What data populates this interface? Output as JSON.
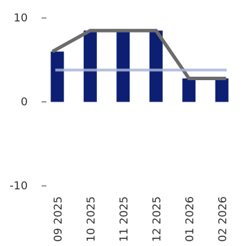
{
  "chart_data": {
    "type": "bar",
    "categories": [
      "09 2025",
      "10 2025",
      "11 2025",
      "12 2025",
      "01 2026",
      "02 2026"
    ],
    "series": [
      {
        "kind": "bar",
        "values": [
          6.0,
          8.5,
          8.5,
          8.5,
          2.8,
          2.8
        ],
        "color": "#0d1f73"
      },
      {
        "kind": "line",
        "values": [
          6.0,
          8.5,
          8.5,
          8.5,
          2.8,
          2.8
        ],
        "color": "#6b6b6b"
      },
      {
        "kind": "line",
        "values": [
          3.8,
          3.8,
          3.8,
          3.8,
          3.8,
          3.8
        ],
        "color": "#a9b4d6"
      }
    ],
    "y_ticks": [
      "10",
      "0",
      "-10"
    ],
    "ylim": [
      -10,
      10
    ],
    "grid": "none",
    "legend": "none"
  }
}
